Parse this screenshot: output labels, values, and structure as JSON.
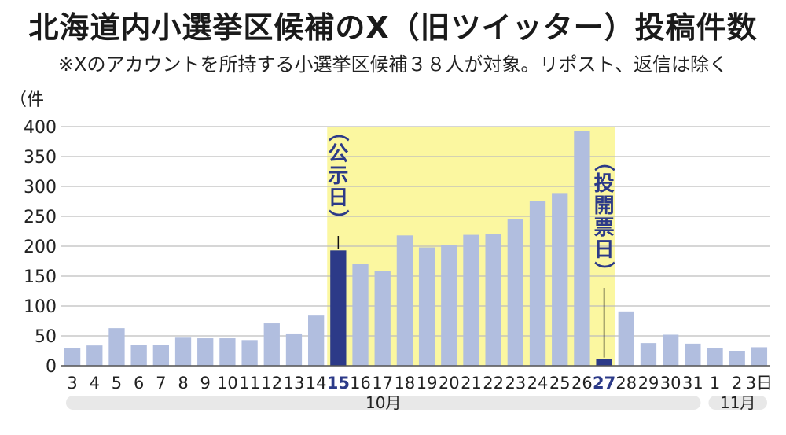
{
  "header": {
    "title": "北海道内小選挙区候補のX（旧ツイッター）投稿件数",
    "subtitle": "※Xのアカウントを所持する小選挙区候補３８人が対象。リポスト、返信は除く"
  },
  "chart_data": {
    "type": "bar",
    "ylabel": "（件",
    "ylim": [
      0,
      400
    ],
    "yticks": [
      0,
      50,
      100,
      150,
      200,
      250,
      300,
      350,
      400
    ],
    "categories": [
      "3",
      "4",
      "5",
      "6",
      "7",
      "8",
      "9",
      "10",
      "11",
      "12",
      "13",
      "14",
      "15",
      "16",
      "17",
      "18",
      "19",
      "20",
      "21",
      "22",
      "23",
      "24",
      "25",
      "26",
      "27",
      "28",
      "29",
      "30",
      "31",
      "1",
      "2",
      "3日"
    ],
    "values": [
      29,
      34,
      63,
      35,
      35,
      47,
      46,
      46,
      43,
      71,
      54,
      84,
      193,
      171,
      158,
      218,
      198,
      202,
      219,
      220,
      246,
      275,
      289,
      393,
      11,
      91,
      38,
      52,
      37,
      29,
      25,
      31
    ],
    "highlight_indices": [
      12,
      24
    ],
    "shaded_range": [
      "15",
      "27"
    ],
    "month_labels": [
      {
        "label": "10月",
        "from": "3",
        "to": "31"
      },
      {
        "label": "11月",
        "from": "1",
        "to": "3日"
      }
    ],
    "annotations": [
      {
        "text": "（公示日）",
        "category": "15"
      },
      {
        "text": "（投開票日）",
        "category": "27"
      }
    ],
    "grid": true,
    "colors": {
      "bar": "#b1bedf",
      "highlight_bar": "#2c3a88",
      "highlight_text": "#2c3a88",
      "shade": "#fbf7a0",
      "grid": "#bdbdbd",
      "month_band": "#e8e8e8"
    }
  }
}
